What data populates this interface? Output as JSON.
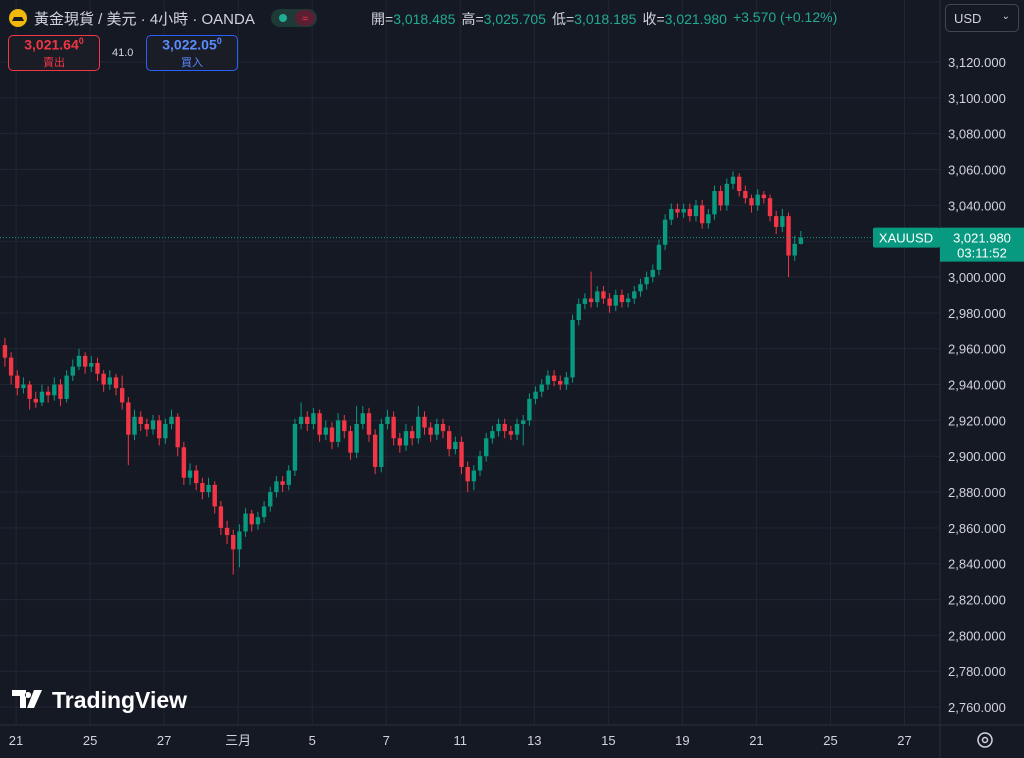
{
  "header": {
    "title": "黃金現貨 / 美元 · 4小時 · OANDA",
    "ohlc": [
      {
        "label": "開=",
        "value": "3,018.485"
      },
      {
        "label": "高=",
        "value": "3,025.705"
      },
      {
        "label": "低=",
        "value": "3,018.185"
      },
      {
        "label": "收=",
        "value": "3,021.980"
      }
    ],
    "change": "+3.570 (+0.12%)",
    "currency": "USD"
  },
  "trade": {
    "sell_price": "3,021.64",
    "sell_sup": "0",
    "sell_label": "賣出",
    "spread": "41.0",
    "buy_price": "3,022.05",
    "buy_sup": "0",
    "buy_label": "買入"
  },
  "brand": "TradingView",
  "chart_data": {
    "type": "candlestick",
    "up_color": "#089981",
    "down_color": "#f23645",
    "grid": true,
    "symbol": "XAUUSD",
    "last_price_label": "3,021.980",
    "countdown": "03:11:52",
    "xlim": [
      -0.8,
      151.55
    ],
    "ylim": [
      2750,
      3154.6
    ],
    "xticks": [
      {
        "value": 1.8,
        "label": "21"
      },
      {
        "value": 13.8,
        "label": "25"
      },
      {
        "value": 25.8,
        "label": "27"
      },
      {
        "value": 37.8,
        "label": "三月"
      },
      {
        "value": 49.8,
        "label": "5"
      },
      {
        "value": 61.8,
        "label": "7"
      },
      {
        "value": 73.8,
        "label": "11"
      },
      {
        "value": 85.8,
        "label": "13"
      },
      {
        "value": 97.8,
        "label": "15"
      },
      {
        "value": 109.8,
        "label": "19"
      },
      {
        "value": 121.8,
        "label": "21"
      },
      {
        "value": 133.8,
        "label": "25"
      },
      {
        "value": 145.8,
        "label": "27"
      }
    ],
    "yticks": [
      {
        "value": 2760,
        "label": "2,760.000"
      },
      {
        "value": 2780,
        "label": "2,780.000"
      },
      {
        "value": 2800,
        "label": "2,800.000"
      },
      {
        "value": 2820,
        "label": "2,820.000"
      },
      {
        "value": 2840,
        "label": "2,840.000"
      },
      {
        "value": 2860,
        "label": "2,860.000"
      },
      {
        "value": 2880,
        "label": "2,880.000"
      },
      {
        "value": 2900,
        "label": "2,900.000"
      },
      {
        "value": 2920,
        "label": "2,920.000"
      },
      {
        "value": 2940,
        "label": "2,940.000"
      },
      {
        "value": 2960,
        "label": "2,960.000"
      },
      {
        "value": 2980,
        "label": "2,980.000"
      },
      {
        "value": 3000,
        "label": "3,000.000"
      },
      {
        "value": 3020,
        "label": "3,020.000"
      },
      {
        "value": 3040,
        "label": "3,040.000"
      },
      {
        "value": 3060,
        "label": "3,060.000"
      },
      {
        "value": 3080,
        "label": "3,080.000"
      },
      {
        "value": 3100,
        "label": "3,100.000"
      },
      {
        "value": 3120,
        "label": "3,120.000"
      }
    ],
    "open": [
      2962,
      2955,
      2945,
      2938,
      2940,
      2932,
      2930,
      2936,
      2934,
      2940,
      2932,
      2945,
      2950,
      2956,
      2950,
      2952,
      2946,
      2940,
      2944,
      2938,
      2930,
      2912,
      2922,
      2918,
      2915,
      2920,
      2910,
      2918,
      2922,
      2905,
      2888,
      2892,
      2885,
      2880,
      2884,
      2872,
      2860,
      2856,
      2848,
      2858,
      2868,
      2862,
      2866,
      2872,
      2880,
      2886,
      2884,
      2892,
      2918,
      2922,
      2918,
      2924,
      2912,
      2916,
      2908,
      2920,
      2914,
      2902,
      2918,
      2924,
      2912,
      2894,
      2918,
      2922,
      2910,
      2906,
      2914,
      2910,
      2922,
      2916,
      2912,
      2918,
      2914,
      2904,
      2908,
      2894,
      2886,
      2892,
      2900,
      2910,
      2914,
      2918,
      2914,
      2912,
      2918,
      2920,
      2932,
      2936,
      2940,
      2945,
      2942,
      2940,
      2944,
      2976,
      2985,
      2988,
      2986,
      2992,
      2988,
      2984,
      2990,
      2986,
      2988,
      2992,
      2996,
      3000,
      3004,
      3018,
      3032,
      3038,
      3036,
      3038,
      3034,
      3040,
      3030,
      3035,
      3048,
      3040,
      3052,
      3056,
      3048,
      3044,
      3040,
      3046,
      3044,
      3034,
      3028,
      3034,
      3012,
      3018.485
    ],
    "high": [
      2966,
      2958,
      2948,
      2944,
      2942,
      2936,
      2940,
      2939,
      2944,
      2943,
      2948,
      2954,
      2960,
      2958,
      2956,
      2955,
      2948,
      2948,
      2946,
      2945,
      2933,
      2926,
      2925,
      2921,
      2923,
      2923,
      2921,
      2926,
      2924,
      2908,
      2896,
      2895,
      2888,
      2888,
      2886,
      2875,
      2864,
      2859,
      2862,
      2871,
      2870,
      2869,
      2875,
      2883,
      2889,
      2889,
      2895,
      2921,
      2930,
      2925,
      2927,
      2926,
      2920,
      2919,
      2924,
      2923,
      2917,
      2928,
      2928,
      2927,
      2915,
      2921,
      2926,
      2925,
      2913,
      2918,
      2917,
      2928,
      2925,
      2919,
      2921,
      2921,
      2917,
      2911,
      2911,
      2897,
      2895,
      2903,
      2913,
      2917,
      2921,
      2921,
      2917,
      2921,
      2923,
      2935,
      2939,
      2943,
      2948,
      2948,
      2945,
      2947,
      2979,
      2988,
      2991,
      3003,
      2995,
      2995,
      2991,
      2993,
      2993,
      2991,
      2995,
      2999,
      3003,
      3007,
      3021,
      3035,
      3041,
      3041,
      3041,
      3041,
      3043,
      3043,
      3038,
      3051,
      3051,
      3055,
      3059,
      3058,
      3051,
      3046,
      3049,
      3048,
      3046,
      3037,
      3038,
      3036,
      3023,
      3025.705
    ],
    "low": [
      2950,
      2940,
      2934,
      2935,
      2926,
      2927,
      2928,
      2930,
      2931,
      2928,
      2930,
      2942,
      2948,
      2946,
      2947,
      2942,
      2936,
      2937,
      2934,
      2926,
      2895,
      2909,
      2914,
      2911,
      2912,
      2906,
      2907,
      2915,
      2900,
      2884,
      2884,
      2881,
      2876,
      2877,
      2868,
      2856,
      2851,
      2834,
      2838,
      2855,
      2858,
      2859,
      2863,
      2869,
      2877,
      2880,
      2881,
      2889,
      2915,
      2914,
      2915,
      2908,
      2909,
      2904,
      2905,
      2910,
      2898,
      2899,
      2915,
      2908,
      2890,
      2891,
      2915,
      2906,
      2902,
      2903,
      2906,
      2907,
      2912,
      2908,
      2909,
      2910,
      2900,
      2901,
      2890,
      2880,
      2881,
      2889,
      2897,
      2907,
      2911,
      2910,
      2909,
      2909,
      2906,
      2917,
      2929,
      2933,
      2937,
      2939,
      2937,
      2937,
      2941,
      2973,
      2982,
      2983,
      2983,
      2985,
      2980,
      2981,
      2983,
      2983,
      2985,
      2989,
      2993,
      2997,
      3001,
      3015,
      3029,
      3033,
      3033,
      3031,
      3031,
      3027,
      3027,
      3032,
      3037,
      3037,
      3049,
      3045,
      3041,
      3036,
      3037,
      3041,
      3031,
      3024,
      3025,
      3000,
      3009,
      3018.185
    ],
    "close": [
      2955,
      2945,
      2938,
      2940,
      2932,
      2930,
      2936,
      2934,
      2940,
      2932,
      2945,
      2950,
      2956,
      2950,
      2952,
      2946,
      2940,
      2944,
      2938,
      2930,
      2912,
      2922,
      2918,
      2915,
      2920,
      2910,
      2918,
      2922,
      2905,
      2888,
      2892,
      2885,
      2880,
      2884,
      2872,
      2860,
      2856,
      2848,
      2858,
      2868,
      2862,
      2866,
      2872,
      2880,
      2886,
      2884,
      2892,
      2918,
      2922,
      2918,
      2924,
      2912,
      2916,
      2908,
      2920,
      2914,
      2902,
      2918,
      2924,
      2912,
      2894,
      2918,
      2922,
      2910,
      2906,
      2914,
      2910,
      2922,
      2916,
      2912,
      2918,
      2914,
      2904,
      2908,
      2894,
      2886,
      2892,
      2900,
      2910,
      2914,
      2918,
      2914,
      2912,
      2918,
      2920,
      2932,
      2936,
      2940,
      2945,
      2942,
      2940,
      2944,
      2976,
      2985,
      2988,
      2986,
      2992,
      2988,
      2984,
      2990,
      2986,
      2988,
      2992,
      2996,
      3000,
      3004,
      3018,
      3032,
      3038,
      3036,
      3038,
      3034,
      3040,
      3030,
      3035,
      3048,
      3040,
      3052,
      3056,
      3048,
      3044,
      3040,
      3046,
      3044,
      3034,
      3028,
      3034,
      3012,
      3018.485,
      3021.98
    ]
  }
}
